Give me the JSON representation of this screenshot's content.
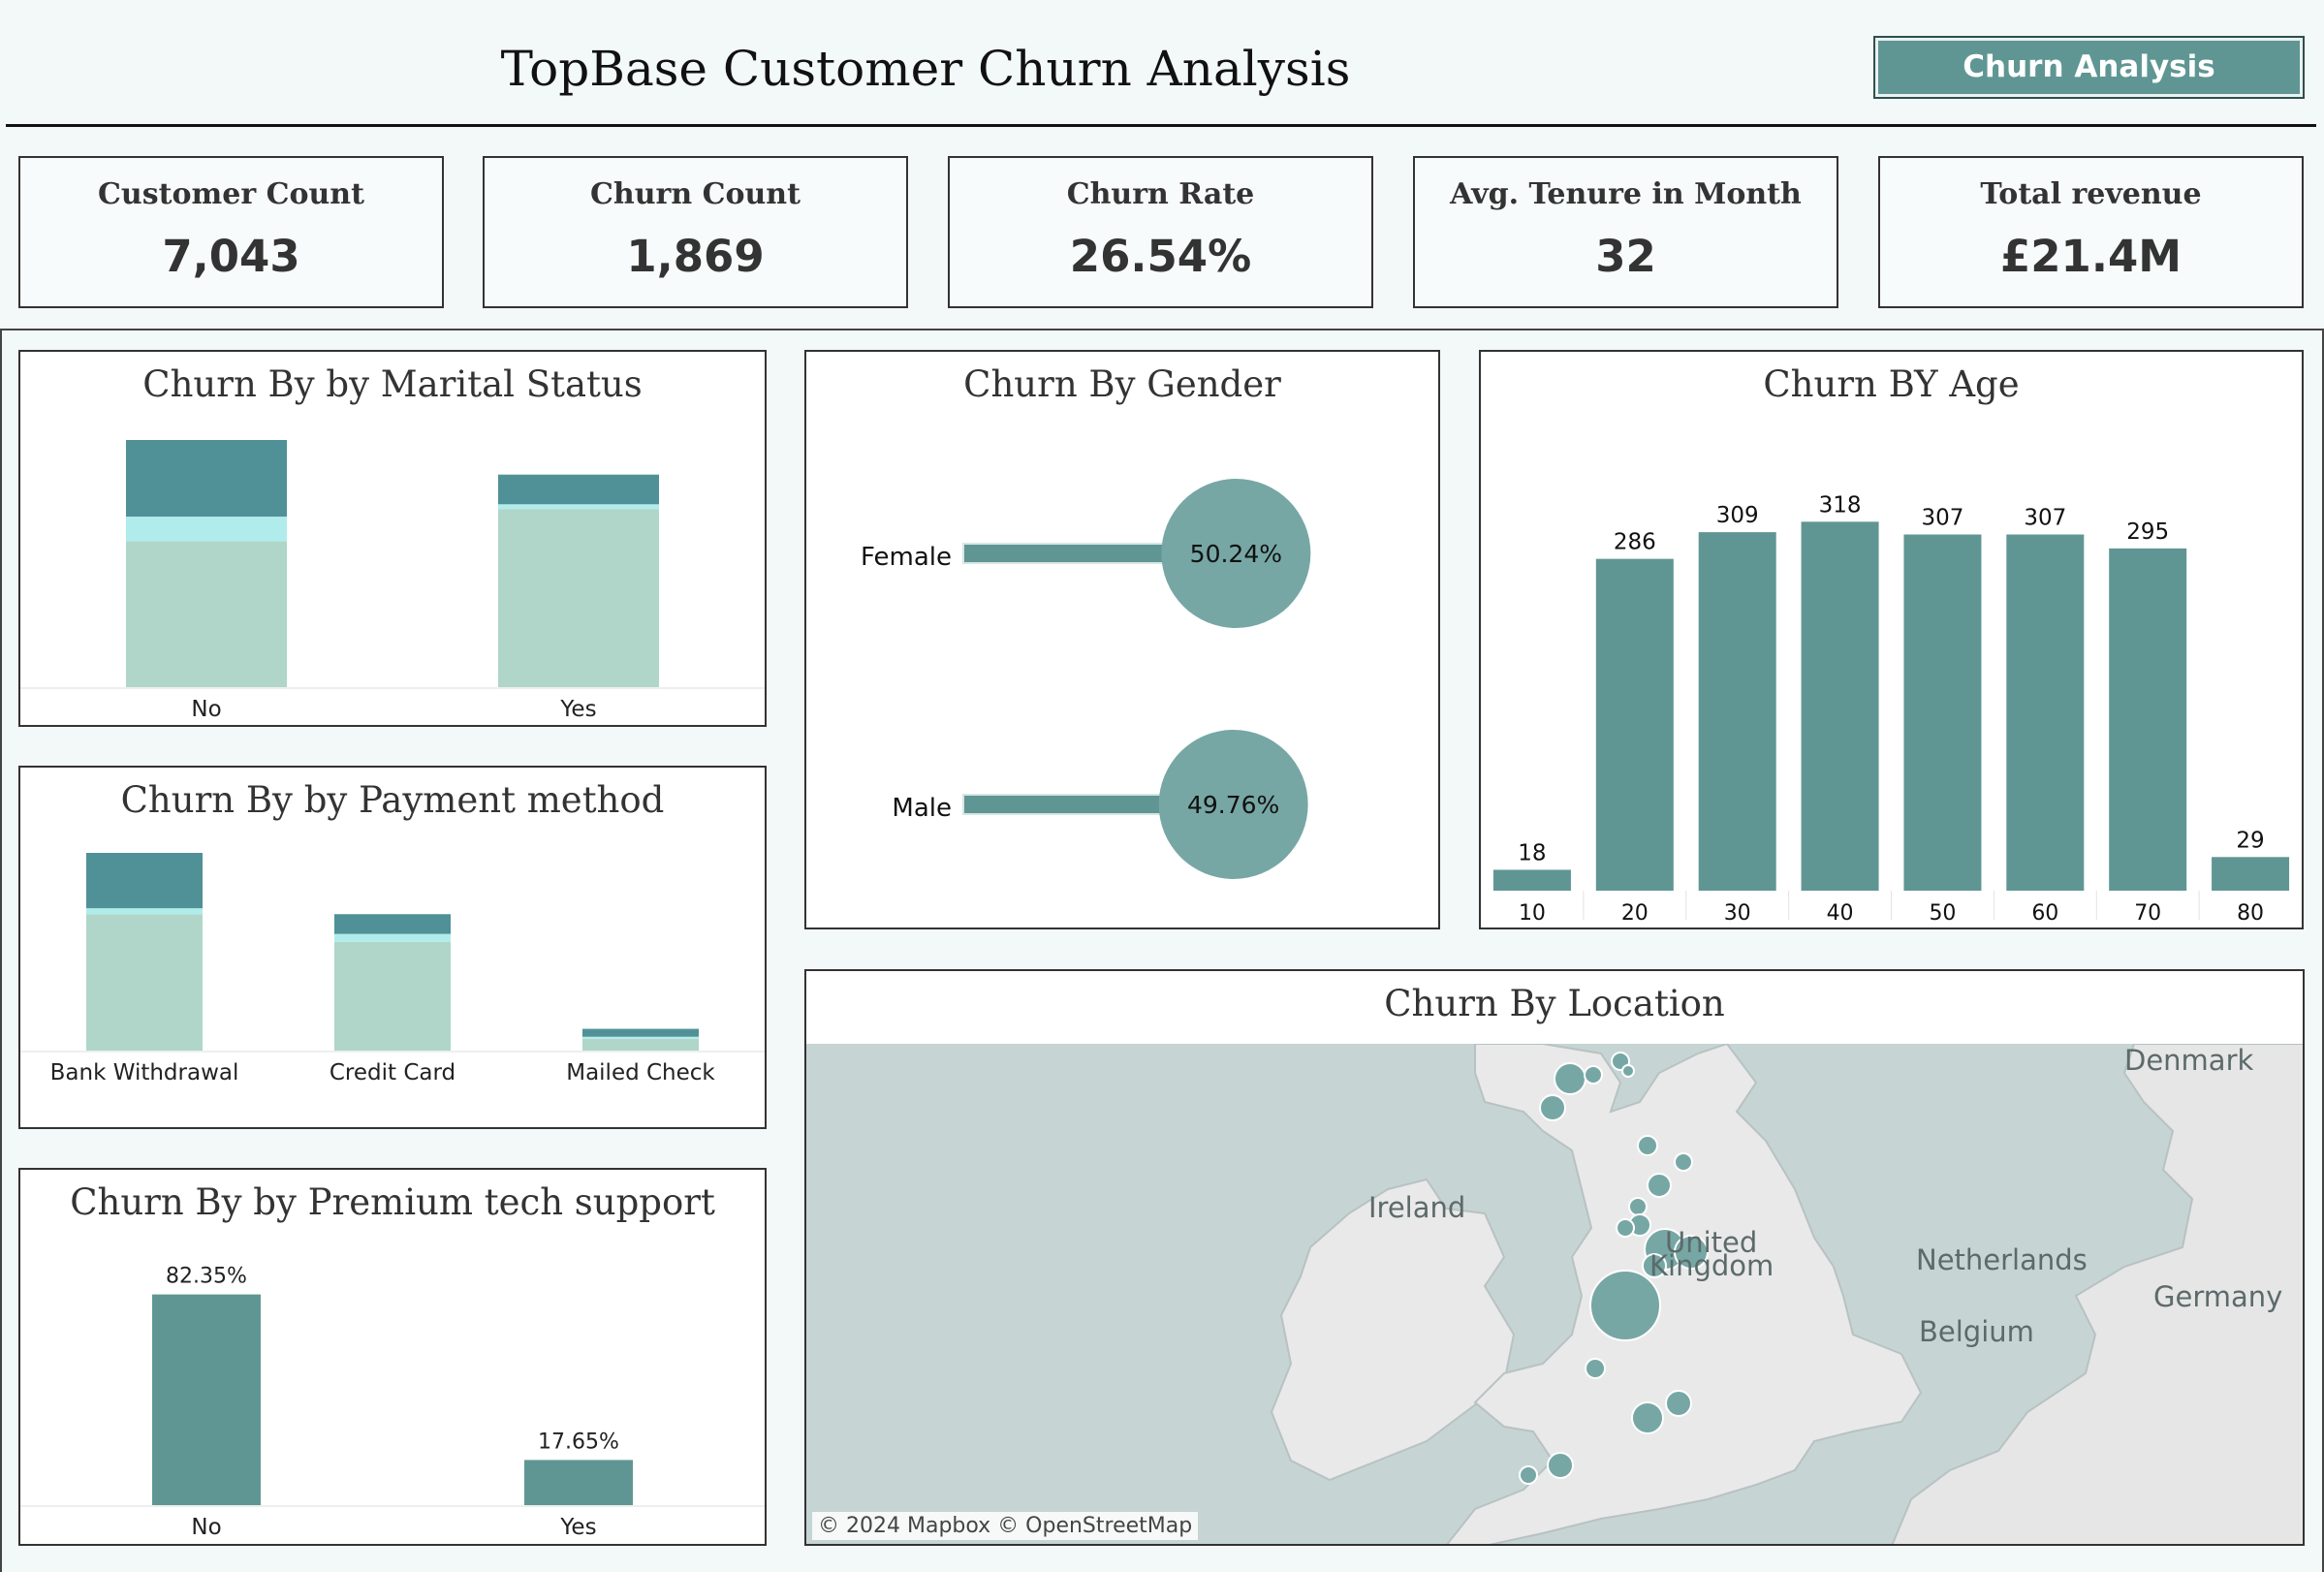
{
  "header": {
    "title": "TopBase Customer Churn Analysis",
    "nav_button_label": "Churn Analysis"
  },
  "kpis": [
    {
      "label": "Customer Count",
      "value": "7,043"
    },
    {
      "label": "Churn Count",
      "value": "1,869"
    },
    {
      "label": "Churn Rate",
      "value": "26.54%"
    },
    {
      "label": "Avg. Tenure in Month",
      "value": "32"
    },
    {
      "label": "Total revenue",
      "value": "£21.4M"
    }
  ],
  "colors": {
    "teal_dark": "#4f9196",
    "teal_mid": "#5f9693",
    "cyan_light": "#b0ecec",
    "mint": "#afd6c8",
    "bubble": "#76a7a4",
    "map_water": "#c6d4d4",
    "map_land": "#e9e9e9"
  },
  "map": {
    "title": "Churn By Location",
    "labels": [
      "Denmark",
      "Ireland",
      "United",
      "Kingdom",
      "Netherlands",
      "Germany",
      "Belgium"
    ],
    "credit": "© 2024 Mapbox © OpenStreetMap"
  },
  "chart_data": [
    {
      "id": "marital",
      "type": "bar",
      "stacked": true,
      "title": "Churn By by Marital Status",
      "categories": [
        "No",
        "Yes"
      ],
      "series": [
        {
          "values": [
            0.59,
            0.72
          ],
          "color": "#afd6c8"
        },
        {
          "values": [
            0.1,
            0.02
          ],
          "color": "#b0ecec"
        },
        {
          "values": [
            0.31,
            0.12
          ],
          "color": "#4f9196"
        }
      ],
      "ylim": [
        0,
        1
      ]
    },
    {
      "id": "payment",
      "type": "bar",
      "stacked": true,
      "title": "Churn By by Payment method",
      "categories": [
        "Bank Withdrawal",
        "Credit Card",
        "Mailed Check"
      ],
      "series": [
        {
          "values": [
            0.69,
            0.55,
            0.06
          ],
          "color": "#afd6c8"
        },
        {
          "values": [
            0.03,
            0.04,
            0.01
          ],
          "color": "#b0ecec"
        },
        {
          "values": [
            0.28,
            0.1,
            0.04
          ],
          "color": "#4f9196"
        }
      ],
      "ylim": [
        0,
        1
      ]
    },
    {
      "id": "tech",
      "type": "bar",
      "title": "Churn By by Premium tech support",
      "categories": [
        "No",
        "Yes"
      ],
      "values": [
        82.35,
        17.65
      ],
      "value_labels": [
        "82.35%",
        "17.65%"
      ],
      "ylim": [
        0,
        100
      ]
    },
    {
      "id": "gender",
      "type": "bar",
      "orientation": "horizontal",
      "title": "Churn By Gender",
      "categories": [
        "Female",
        "Male"
      ],
      "values": [
        50.24,
        49.76
      ],
      "value_labels": [
        "50.24%",
        "49.76%"
      ]
    },
    {
      "id": "age",
      "type": "bar",
      "title": "Churn BY Age",
      "categories": [
        "10",
        "20",
        "30",
        "40",
        "50",
        "60",
        "70",
        "80"
      ],
      "values": [
        18,
        286,
        309,
        318,
        307,
        307,
        295,
        29
      ],
      "ylim": [
        0,
        340
      ]
    }
  ]
}
